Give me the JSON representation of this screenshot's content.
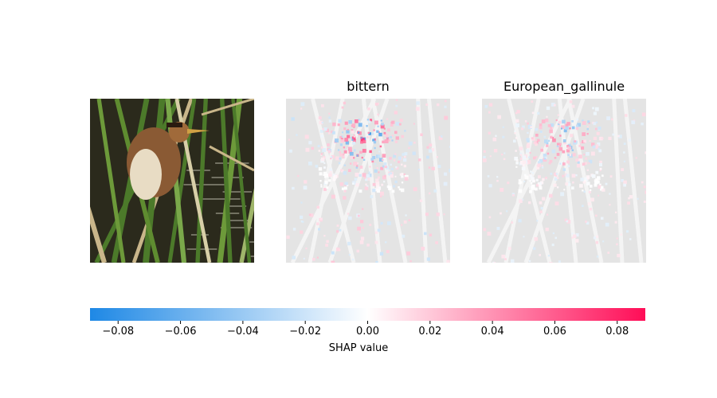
{
  "chart_data": {
    "type": "heatmap",
    "panels": [
      {
        "title": "",
        "kind": "input-image"
      },
      {
        "title": "bittern",
        "kind": "shap-heatmap"
      },
      {
        "title": "European_gallinule",
        "kind": "shap-heatmap"
      }
    ],
    "colorbar": {
      "label": "SHAP value",
      "range": [
        -0.089,
        0.089
      ],
      "ticks": [
        -0.08,
        -0.06,
        -0.04,
        -0.02,
        0.0,
        0.02,
        0.04,
        0.06,
        0.08
      ],
      "tick_labels": [
        "−0.08",
        "−0.06",
        "−0.04",
        "−0.02",
        "0.00",
        "0.02",
        "0.04",
        "0.06",
        "0.08"
      ],
      "colors": {
        "negative": "#1e88e5",
        "zero": "#ffffff",
        "positive": "#ff0d57"
      }
    }
  },
  "colors": {
    "water": "#2b2a1c",
    "reed_green": "#4c7a2a",
    "reed_pale": "#c9b68a",
    "bird_body": "#8a5a34",
    "bird_belly": "#e8dcc4",
    "heatmap_bg": "#e4e4e4"
  }
}
